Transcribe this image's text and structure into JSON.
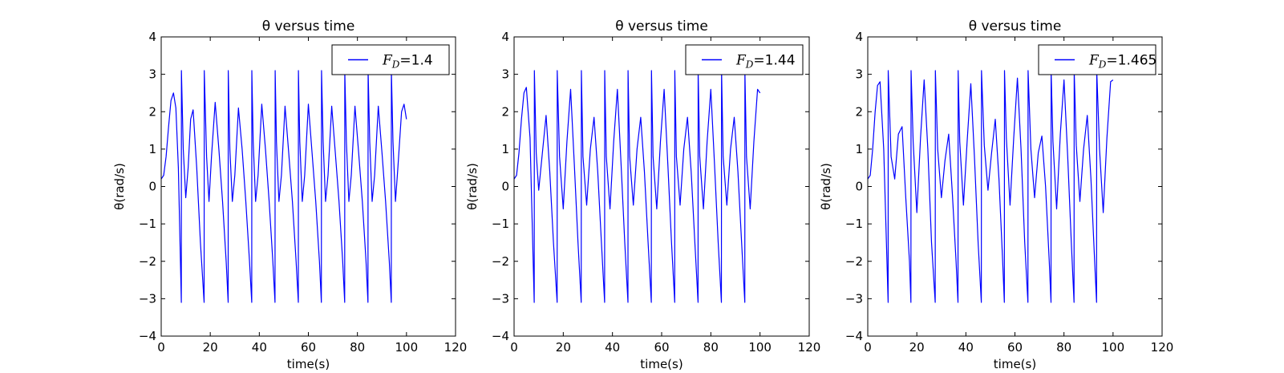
{
  "chart_data": [
    {
      "type": "line",
      "title": "θ versus time",
      "xlabel": "time(s)",
      "ylabel": "θ(rad/s)",
      "xlim": [
        0,
        120
      ],
      "ylim": [
        -4,
        4
      ],
      "xticks": [
        "0",
        "20",
        "40",
        "60",
        "80",
        "100",
        "120"
      ],
      "yticks": [
        "−4",
        "−3",
        "−2",
        "−1",
        "0",
        "1",
        "2",
        "3",
        "4"
      ],
      "grid": false,
      "legend_position": "top-right",
      "series": [
        {
          "name": "F_D=1.4",
          "legend_var": "F",
          "legend_sub": "D",
          "legend_value": "=1.4",
          "color": "#0000ff",
          "x": [
            0,
            1,
            2,
            3,
            4,
            5,
            6,
            7,
            8.2,
            8.25,
            9,
            10,
            11,
            12,
            13,
            14.5,
            16,
            17.5,
            17.55,
            18.5,
            19.5,
            20.5,
            22,
            23.5,
            25,
            26.5,
            27.3,
            27.35,
            28,
            29,
            30,
            31.5,
            33,
            34.5,
            36,
            36.9,
            36.95,
            37.5,
            38.5,
            39.5,
            41,
            42.5,
            44,
            45.5,
            46.4,
            46.45,
            47,
            48,
            49,
            50.5,
            52,
            53.5,
            55,
            55.9,
            55.95,
            56.5,
            57.5,
            58.5,
            60,
            61.5,
            63,
            64.5,
            65.3,
            65.35,
            66,
            67,
            68,
            69.5,
            71,
            72.5,
            74,
            74.8,
            74.85,
            75.5,
            76.5,
            77.5,
            79,
            80.5,
            82,
            83.5,
            84.3,
            84.35,
            85,
            86,
            87,
            88.5,
            90,
            91.5,
            93,
            93.8,
            93.85,
            94.5,
            95.5,
            96.5,
            98,
            99,
            100
          ],
          "y": [
            0.2,
            0.3,
            0.8,
            1.6,
            2.3,
            2.5,
            2.1,
            0.5,
            -3.1,
            3.1,
            1.0,
            -0.3,
            0.5,
            1.8,
            2.05,
            0.5,
            -1.5,
            -3.1,
            3.1,
            0.8,
            -0.4,
            0.8,
            2.25,
            1.0,
            -0.4,
            -2.0,
            -3.1,
            3.1,
            1.0,
            -0.4,
            0.3,
            2.1,
            1.0,
            -0.4,
            -2.0,
            -3.1,
            3.1,
            1.2,
            -0.4,
            0.3,
            2.2,
            1.0,
            -0.4,
            -2.0,
            -3.1,
            3.1,
            1.2,
            -0.4,
            0.3,
            2.15,
            0.9,
            -0.4,
            -2.0,
            -3.1,
            3.1,
            1.2,
            -0.4,
            0.3,
            2.2,
            0.9,
            -0.4,
            -2.0,
            -3.1,
            3.1,
            1.2,
            -0.4,
            0.3,
            2.15,
            0.9,
            -0.4,
            -2.0,
            -3.1,
            3.1,
            1.2,
            -0.4,
            0.3,
            2.15,
            0.9,
            -0.4,
            -2.0,
            -3.1,
            3.1,
            1.2,
            -0.4,
            0.3,
            2.15,
            0.9,
            -0.4,
            -2.0,
            -3.1,
            3.1,
            1.2,
            -0.4,
            0.5,
            2.0,
            2.2,
            1.8
          ]
        }
      ]
    },
    {
      "type": "line",
      "title": "θ versus time",
      "xlabel": "time(s)",
      "ylabel": "θ(rad/s)",
      "xlim": [
        0,
        120
      ],
      "ylim": [
        -4,
        4
      ],
      "xticks": [
        "0",
        "20",
        "40",
        "60",
        "80",
        "100",
        "120"
      ],
      "yticks": [
        "−4",
        "−3",
        "−2",
        "−1",
        "0",
        "1",
        "2",
        "3",
        "4"
      ],
      "grid": false,
      "legend_position": "top-right",
      "series": [
        {
          "name": "F_D=1.44",
          "legend_var": "F",
          "legend_sub": "D",
          "legend_value": "=1.44",
          "color": "#0000ff",
          "x": [
            0,
            1,
            2,
            3,
            4,
            5,
            6.5,
            8.2,
            8.25,
            9,
            10,
            11.5,
            13,
            14.5,
            16,
            17.5,
            17.55,
            18.5,
            20,
            21.5,
            23,
            24.5,
            26,
            27.3,
            27.35,
            28,
            29.5,
            31,
            32.5,
            34,
            35.5,
            36.8,
            36.85,
            37.5,
            39,
            40.5,
            42,
            43.5,
            45,
            46.3,
            46.35,
            47,
            48.5,
            50,
            51.5,
            53,
            54.5,
            55.8,
            55.85,
            56.5,
            58,
            59.5,
            61,
            62.5,
            64,
            65.3,
            65.35,
            66,
            67.5,
            69,
            70.5,
            72,
            73.5,
            74.8,
            74.85,
            75.5,
            77,
            78.5,
            80,
            81.5,
            83,
            84.3,
            84.35,
            85,
            86.5,
            88,
            89.5,
            91,
            92.5,
            93.8,
            93.85,
            94.5,
            96,
            97.5,
            99,
            100
          ],
          "y": [
            0.2,
            0.3,
            0.9,
            1.8,
            2.5,
            2.65,
            1.3,
            -3.1,
            3.1,
            0.9,
            -0.1,
            0.9,
            1.9,
            0.4,
            -1.5,
            -3.1,
            3.1,
            0.8,
            -0.6,
            1.2,
            2.6,
            0.6,
            -1.5,
            -3.1,
            3.1,
            0.8,
            -0.5,
            1.0,
            1.85,
            0.4,
            -1.5,
            -3.1,
            3.1,
            0.8,
            -0.6,
            1.2,
            2.6,
            0.6,
            -1.5,
            -3.1,
            3.1,
            0.8,
            -0.5,
            1.0,
            1.85,
            0.4,
            -1.5,
            -3.1,
            3.1,
            0.8,
            -0.6,
            1.2,
            2.6,
            0.6,
            -1.5,
            -3.1,
            3.1,
            0.8,
            -0.5,
            1.0,
            1.85,
            0.4,
            -1.5,
            -3.1,
            3.1,
            0.8,
            -0.6,
            1.2,
            2.6,
            0.6,
            -1.5,
            -3.1,
            3.1,
            0.8,
            -0.5,
            1.0,
            1.85,
            0.4,
            -1.5,
            -3.1,
            3.1,
            0.8,
            -0.6,
            1.2,
            2.6,
            2.5
          ]
        }
      ]
    },
    {
      "type": "line",
      "title": "θ versus time",
      "xlabel": "time(s)",
      "ylabel": "θ(rad/s)",
      "xlim": [
        0,
        120
      ],
      "ylim": [
        -4,
        4
      ],
      "xticks": [
        "0",
        "20",
        "40",
        "60",
        "80",
        "100",
        "120"
      ],
      "yticks": [
        "−4",
        "−3",
        "−2",
        "−1",
        "0",
        "1",
        "2",
        "3",
        "4"
      ],
      "grid": false,
      "legend_position": "top-right",
      "series": [
        {
          "name": "F_D=1.465",
          "legend_var": "F",
          "legend_sub": "D",
          "legend_value": "=1.465",
          "color": "#0000ff",
          "x": [
            0,
            1,
            2,
            3,
            4,
            5,
            6.5,
            8.3,
            8.35,
            9.5,
            11,
            12.5,
            14,
            15.5,
            17,
            17.6,
            17.65,
            18.5,
            20,
            21.5,
            23,
            24.5,
            26,
            27.5,
            27.55,
            28.5,
            30,
            31.5,
            33,
            34.5,
            36,
            36.8,
            36.85,
            37.5,
            39,
            40.5,
            42,
            43.5,
            45,
            46.3,
            46.35,
            47.5,
            49,
            50.5,
            52,
            53.5,
            55,
            55.7,
            55.75,
            56.5,
            58,
            59.5,
            61,
            62.5,
            64,
            65.3,
            65.35,
            66.5,
            68,
            69.5,
            71,
            72.5,
            74,
            74.7,
            74.75,
            75.5,
            77,
            78.5,
            80,
            81.5,
            83,
            84.1,
            84.15,
            85,
            86.5,
            88,
            89.5,
            91,
            92.5,
            93.3,
            93.35,
            94.5,
            96,
            97.5,
            99,
            100
          ],
          "y": [
            0.2,
            0.3,
            1.0,
            2.0,
            2.7,
            2.8,
            1.0,
            -3.1,
            3.1,
            0.8,
            0.2,
            1.4,
            1.6,
            -0.3,
            -2.0,
            -3.1,
            3.1,
            1.2,
            -0.7,
            1.3,
            2.85,
            1.0,
            -1.5,
            -3.1,
            3.1,
            1.0,
            -0.3,
            0.7,
            1.4,
            -0.2,
            -2.0,
            -3.1,
            3.1,
            1.2,
            -0.5,
            1.2,
            2.75,
            0.8,
            -1.5,
            -3.1,
            3.1,
            1.1,
            -0.1,
            0.9,
            1.8,
            0.2,
            -2.0,
            -3.1,
            3.1,
            1.3,
            -0.5,
            1.3,
            2.9,
            1.0,
            -1.5,
            -3.1,
            3.1,
            1.0,
            -0.3,
            0.9,
            1.35,
            0.0,
            -2.0,
            -3.1,
            3.1,
            1.2,
            -0.6,
            1.4,
            2.85,
            0.8,
            -1.5,
            -3.1,
            3.1,
            1.1,
            -0.4,
            1.0,
            1.9,
            0.2,
            -2.0,
            -3.1,
            3.1,
            1.0,
            -0.7,
            1.3,
            2.8,
            2.85
          ]
        }
      ]
    }
  ]
}
